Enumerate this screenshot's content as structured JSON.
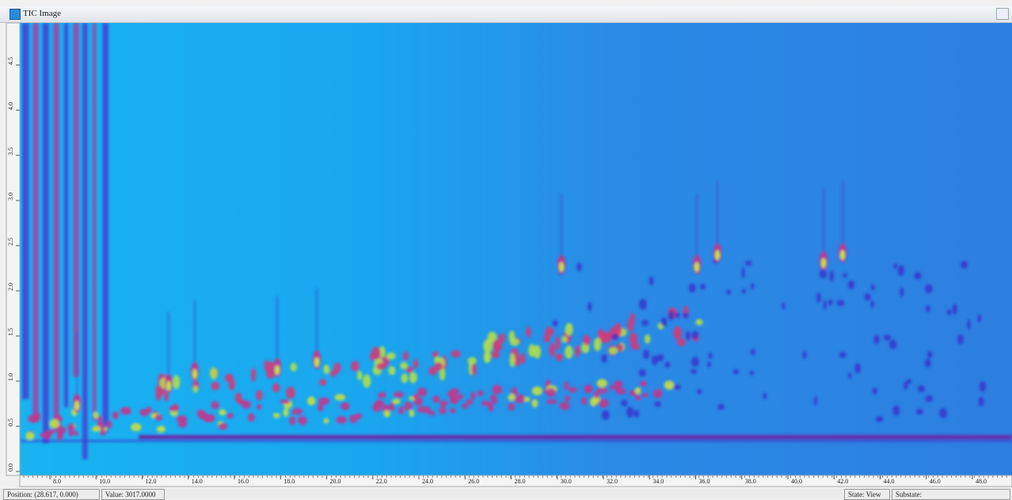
{
  "window": {
    "title": "TIC Image"
  },
  "axis": {
    "x_labels": [
      "8.0",
      "10.0",
      "12.0",
      "14.0",
      "16.0",
      "18.0",
      "20.0",
      "22.0",
      "24.0",
      "26.0",
      "28.0",
      "30.0",
      "32.0",
      "34.0",
      "36.0",
      "38.0",
      "40.0",
      "42.0",
      "44.0",
      "46.0",
      "48.0"
    ],
    "y_labels": [
      "0.0",
      "0.5",
      "1.0",
      "1.5",
      "2.0",
      "2.5",
      "3.0",
      "3.5",
      "4.0",
      "4.5"
    ]
  },
  "status": {
    "position": "Position: (28.617, 0.000)",
    "value": "Value: 3017.0000",
    "state": "State: View",
    "substate": "Substate:"
  }
}
